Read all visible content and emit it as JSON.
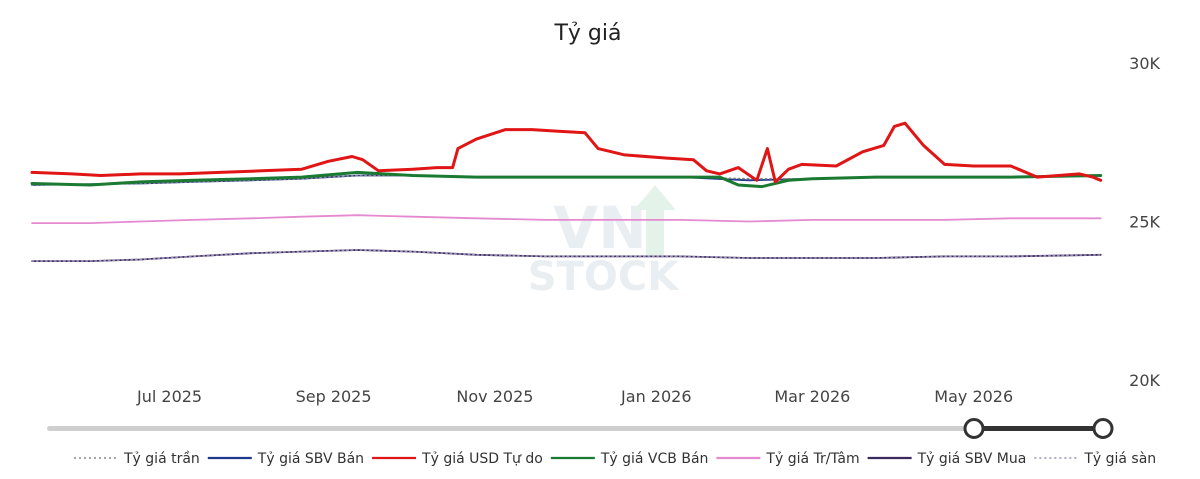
{
  "chart_data": {
    "type": "line",
    "title": "Tỷ giá",
    "xlabel": "",
    "ylabel": "",
    "x_ticks": [
      "Jul 2025",
      "Sep 2025",
      "Nov 2025",
      "Jan 2026",
      "Mar 2026",
      "May 2026"
    ],
    "x_tick_dates": [
      "2025-07-01",
      "2025-09-01",
      "2025-11-01",
      "2026-01-01",
      "2026-03-01",
      "2026-05-01"
    ],
    "xlim": [
      "2025-05-10",
      "2026-06-20"
    ],
    "y_ticks": [
      {
        "value": 30000,
        "label": "30K"
      },
      {
        "value": 25000,
        "label": "25K"
      },
      {
        "value": 20000,
        "label": "20K"
      }
    ],
    "ylim": [
      20000,
      30000
    ],
    "y_axis_position": "right",
    "grid": false,
    "legend_position": "bottom",
    "watermark": "VN STOCK",
    "range_slider": {
      "start": 0.9,
      "end": 1.0
    },
    "series": [
      {
        "name": "Tỷ giá trần",
        "color": "#888888",
        "style": "dotted",
        "x": [
          "2025-05-10",
          "2025-06-01",
          "2025-06-20",
          "2025-07-10",
          "2025-08-01",
          "2025-08-20",
          "2025-09-10",
          "2025-10-01",
          "2025-10-25",
          "2025-11-20",
          "2025-12-15",
          "2026-01-10",
          "2026-02-05",
          "2026-03-01",
          "2026-03-25",
          "2026-04-20",
          "2026-05-15",
          "2026-06-18"
        ],
        "y": [
          26150,
          26180,
          26200,
          26250,
          26300,
          26350,
          26450,
          26450,
          26400,
          26400,
          26400,
          26400,
          26350,
          26350,
          26400,
          26400,
          26400,
          26450
        ]
      },
      {
        "name": "Tỷ giá SBV Bán",
        "color": "#1f3a8c",
        "style": "solid",
        "x": [
          "2025-05-10",
          "2025-06-01",
          "2025-06-20",
          "2025-07-10",
          "2025-08-01",
          "2025-08-20",
          "2025-09-10",
          "2025-10-01",
          "2025-10-25",
          "2025-11-20",
          "2025-12-15",
          "2026-01-10",
          "2026-02-05",
          "2026-03-01",
          "2026-03-25",
          "2026-04-20",
          "2026-05-15",
          "2026-06-18"
        ],
        "y": [
          26150,
          26180,
          26200,
          26250,
          26300,
          26350,
          26450,
          26450,
          26400,
          26400,
          26400,
          26400,
          26300,
          26350,
          26400,
          26400,
          26400,
          26450
        ]
      },
      {
        "name": "Tỷ giá USD Tự do",
        "color": "#e01515",
        "style": "solid",
        "x": [
          "2025-05-10",
          "2025-05-25",
          "2025-06-05",
          "2025-06-20",
          "2025-07-05",
          "2025-07-20",
          "2025-08-05",
          "2025-08-20",
          "2025-08-30",
          "2025-09-08",
          "2025-09-12",
          "2025-09-18",
          "2025-10-01",
          "2025-10-10",
          "2025-10-16",
          "2025-10-18",
          "2025-10-25",
          "2025-11-05",
          "2025-11-15",
          "2025-11-25",
          "2025-12-05",
          "2025-12-10",
          "2025-12-20",
          "2026-01-05",
          "2026-01-15",
          "2026-01-20",
          "2026-01-25",
          "2026-02-01",
          "2026-02-08",
          "2026-02-12",
          "2026-02-15",
          "2026-02-20",
          "2026-02-25",
          "2026-03-10",
          "2026-03-20",
          "2026-03-28",
          "2026-04-01",
          "2026-04-05",
          "2026-04-12",
          "2026-04-20",
          "2026-05-01",
          "2026-05-15",
          "2026-05-25",
          "2026-06-10",
          "2026-06-15",
          "2026-06-18"
        ],
        "y": [
          26550,
          26500,
          26450,
          26500,
          26500,
          26550,
          26600,
          26650,
          26900,
          27050,
          26950,
          26600,
          26650,
          26700,
          26700,
          27300,
          27600,
          27900,
          27900,
          27850,
          27800,
          27300,
          27100,
          27000,
          26950,
          26600,
          26500,
          26700,
          26300,
          27300,
          26250,
          26650,
          26800,
          26750,
          27200,
          27400,
          28000,
          28100,
          27400,
          26800,
          26750,
          26750,
          26400,
          26500,
          26400,
          26300
        ]
      },
      {
        "name": "Tỷ giá VCB Bán",
        "color": "#1b7a32",
        "style": "solid",
        "x": [
          "2025-05-10",
          "2025-06-01",
          "2025-06-20",
          "2025-07-10",
          "2025-08-01",
          "2025-08-20",
          "2025-09-10",
          "2025-10-01",
          "2025-10-25",
          "2025-11-20",
          "2025-12-15",
          "2026-01-10",
          "2026-01-25",
          "2026-02-01",
          "2026-02-10",
          "2026-02-20",
          "2026-03-01",
          "2026-03-25",
          "2026-04-20",
          "2026-05-15",
          "2026-06-18"
        ],
        "y": [
          26200,
          26150,
          26250,
          26300,
          26350,
          26400,
          26550,
          26450,
          26400,
          26400,
          26400,
          26400,
          26400,
          26150,
          26100,
          26300,
          26350,
          26400,
          26400,
          26400,
          26450
        ]
      },
      {
        "name": "Tỷ giá Tr/Tâm",
        "color": "#e58ad0",
        "style": "solid",
        "x": [
          "2025-05-10",
          "2025-06-01",
          "2025-06-20",
          "2025-07-10",
          "2025-08-01",
          "2025-08-20",
          "2025-09-10",
          "2025-10-01",
          "2025-10-25",
          "2025-11-20",
          "2025-12-15",
          "2026-01-10",
          "2026-02-05",
          "2026-03-01",
          "2026-03-25",
          "2026-04-20",
          "2026-05-15",
          "2026-06-18"
        ],
        "y": [
          24950,
          24950,
          25000,
          25050,
          25100,
          25150,
          25200,
          25150,
          25100,
          25050,
          25050,
          25050,
          25000,
          25050,
          25050,
          25050,
          25100,
          25100
        ]
      },
      {
        "name": "Tỷ giá SBV Mua",
        "color": "#3b2a5e",
        "style": "solid",
        "x": [
          "2025-05-10",
          "2025-06-01",
          "2025-06-20",
          "2025-07-10",
          "2025-08-01",
          "2025-08-20",
          "2025-09-10",
          "2025-10-01",
          "2025-10-25",
          "2025-11-20",
          "2025-12-15",
          "2026-01-10",
          "2026-02-05",
          "2026-03-01",
          "2026-03-25",
          "2026-04-20",
          "2026-05-15",
          "2026-06-18"
        ],
        "y": [
          23750,
          23750,
          23800,
          23900,
          24000,
          24050,
          24100,
          24050,
          23950,
          23900,
          23900,
          23900,
          23850,
          23850,
          23850,
          23900,
          23900,
          23950
        ]
      },
      {
        "name": "Tỷ giá sàn",
        "color": "#9b8fb5",
        "style": "dotted",
        "x": [
          "2025-05-10",
          "2025-06-01",
          "2025-06-20",
          "2025-07-10",
          "2025-08-01",
          "2025-08-20",
          "2025-09-10",
          "2025-10-01",
          "2025-10-25",
          "2025-11-20",
          "2025-12-15",
          "2026-01-10",
          "2026-02-05",
          "2026-03-01",
          "2026-03-25",
          "2026-04-20",
          "2026-05-15",
          "2026-06-18"
        ],
        "y": [
          23750,
          23750,
          23800,
          23900,
          24000,
          24050,
          24100,
          24050,
          23950,
          23900,
          23900,
          23900,
          23850,
          23850,
          23850,
          23900,
          23900,
          23950
        ]
      }
    ]
  }
}
